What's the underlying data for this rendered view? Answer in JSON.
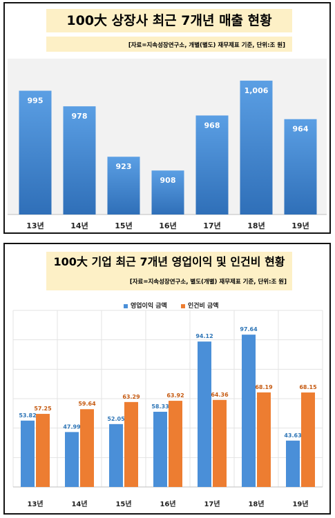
{
  "panel1": {
    "title": "100大 상장사 최근 7개년 매출 현황",
    "source": "[자료=지속성장연구소, 개별(별도) 재무제표 기준, 단위:조 원]"
  },
  "panel2": {
    "title": "100大 기업 최근 7개년 영업이익 및 인건비 현황",
    "source": "[자료=지속성장연구소, 별도(개별) 재무제표 기준, 단위:조 원]",
    "legend": [
      "영업이익 금액",
      "인건비 금액"
    ]
  },
  "colors": {
    "blue": "#4a8fd8",
    "orange": "#ed7d31",
    "label_blue": "#2e75b6",
    "label_orange": "#c55a11"
  },
  "chart_data": [
    {
      "type": "bar",
      "title": "100大 상장사 최근 7개년 매출 현황",
      "categories": [
        "13년",
        "14년",
        "15년",
        "16년",
        "17년",
        "18년",
        "19년"
      ],
      "values": [
        995,
        978,
        923,
        908,
        968,
        1006,
        964
      ],
      "value_labels": [
        "995",
        "978",
        "923",
        "908",
        "968",
        "1,006",
        "964"
      ],
      "ylim": [
        860,
        1030
      ],
      "grid": false
    },
    {
      "type": "bar",
      "title": "100大 기업 최근 7개년 영업이익 및 인건비 현황",
      "categories": [
        "13년",
        "14년",
        "15년",
        "16년",
        "17년",
        "18년",
        "19년"
      ],
      "series": [
        {
          "name": "영업이익 금액",
          "values": [
            53.82,
            47.99,
            52.05,
            58.33,
            94.12,
            97.64,
            43.63
          ]
        },
        {
          "name": "인건비 금액",
          "values": [
            57.25,
            59.64,
            63.29,
            63.92,
            64.36,
            68.19,
            68.15
          ]
        }
      ],
      "ylim": [
        20,
        110
      ],
      "grid": true,
      "legend": "top"
    }
  ]
}
